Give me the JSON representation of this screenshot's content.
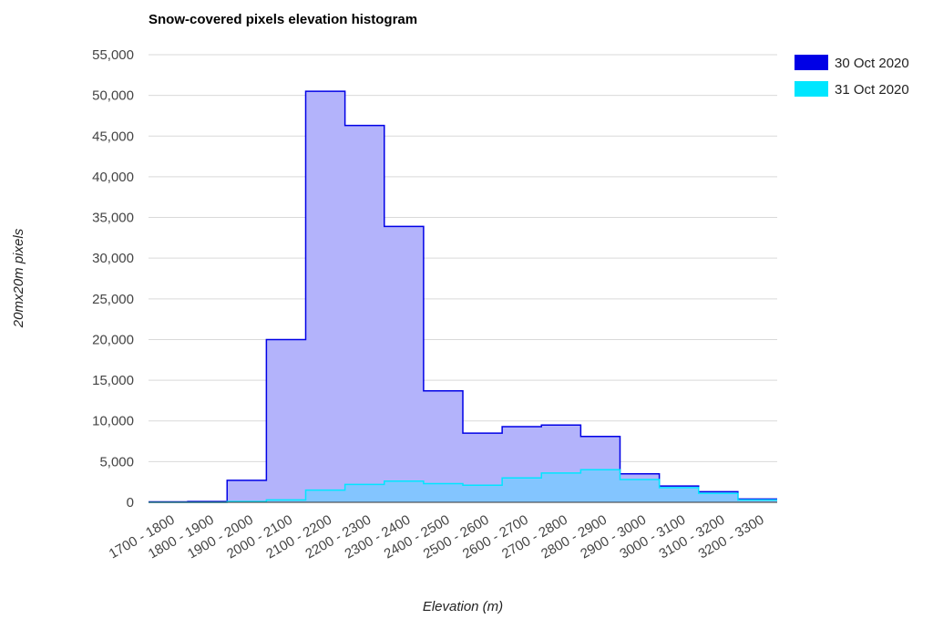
{
  "chart_data": {
    "type": "area",
    "title": "Snow-covered pixels elevation histogram",
    "xlabel": "Elevation (m)",
    "ylabel": "20mx20m pixels",
    "ylim": [
      0,
      55000
    ],
    "yticks": [
      0,
      5000,
      10000,
      15000,
      20000,
      25000,
      30000,
      35000,
      40000,
      45000,
      50000,
      55000
    ],
    "ytick_labels": [
      "0",
      "5,000",
      "10,000",
      "15,000",
      "20,000",
      "25,000",
      "30,000",
      "35,000",
      "40,000",
      "45,000",
      "50,000",
      "55,000"
    ],
    "grid": true,
    "legend_position": "right",
    "categories": [
      "1700 - 1800",
      "1800 - 1900",
      "1900 - 2000",
      "2000 - 2100",
      "2100 - 2200",
      "2200 - 2300",
      "2300 - 2400",
      "2400 - 2500",
      "2500 - 2600",
      "2600 - 2700",
      "2700 - 2800",
      "2800 - 2900",
      "2900 - 3000",
      "3000 - 3100",
      "3100 - 3200",
      "3200 - 3300"
    ],
    "series": [
      {
        "name": "30 Oct 2020",
        "color": "#0000e6",
        "fill": "#b3b3fb",
        "values": [
          50,
          100,
          2700,
          20000,
          50500,
          46300,
          33900,
          13700,
          8500,
          9300,
          9500,
          8100,
          3500,
          2000,
          1300,
          400
        ]
      },
      {
        "name": "31 Oct 2020",
        "color": "#00e6ff",
        "fill": "#7dc7ff",
        "values": [
          0,
          0,
          100,
          300,
          1500,
          2200,
          2600,
          2300,
          2100,
          3000,
          3600,
          4000,
          2800,
          1800,
          1100,
          300
        ]
      }
    ]
  }
}
